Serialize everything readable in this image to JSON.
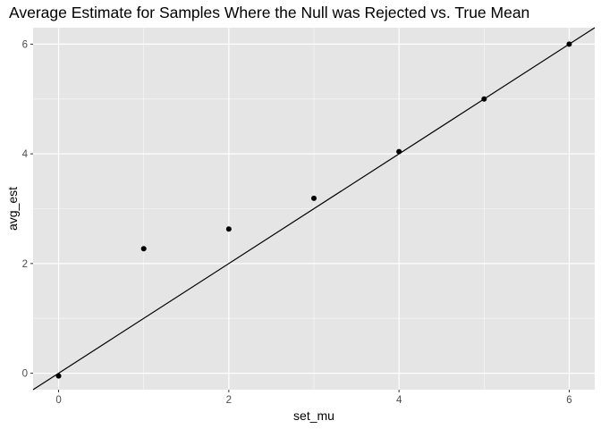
{
  "chart_data": {
    "type": "scatter",
    "title": "Average Estimate for Samples Where the Null was Rejected vs. True Mean",
    "xlabel": "set_mu",
    "ylabel": "avg_est",
    "xlim": [
      -0.3,
      6.3
    ],
    "ylim": [
      -0.3,
      6.3
    ],
    "x_ticks": [
      0,
      2,
      4,
      6
    ],
    "y_ticks": [
      0,
      2,
      4,
      6
    ],
    "x_tick_labels": [
      "0",
      "2",
      "4",
      "6"
    ],
    "y_tick_labels": [
      "0",
      "2",
      "4",
      "6"
    ],
    "grid": true,
    "legend": "none",
    "points": [
      {
        "x": 0,
        "y": -0.05
      },
      {
        "x": 1,
        "y": 2.27
      },
      {
        "x": 2,
        "y": 2.63
      },
      {
        "x": 3,
        "y": 3.19
      },
      {
        "x": 4,
        "y": 4.04
      },
      {
        "x": 5,
        "y": 5.0
      },
      {
        "x": 6,
        "y": 6.0
      }
    ],
    "reference_line": {
      "intercept": 0,
      "slope": 1
    },
    "colors": {
      "panel_background": "#e5e5e5",
      "grid": "#ffffff",
      "points": "#000000",
      "line": "#000000",
      "tick_text": "#4d4d4d"
    }
  }
}
